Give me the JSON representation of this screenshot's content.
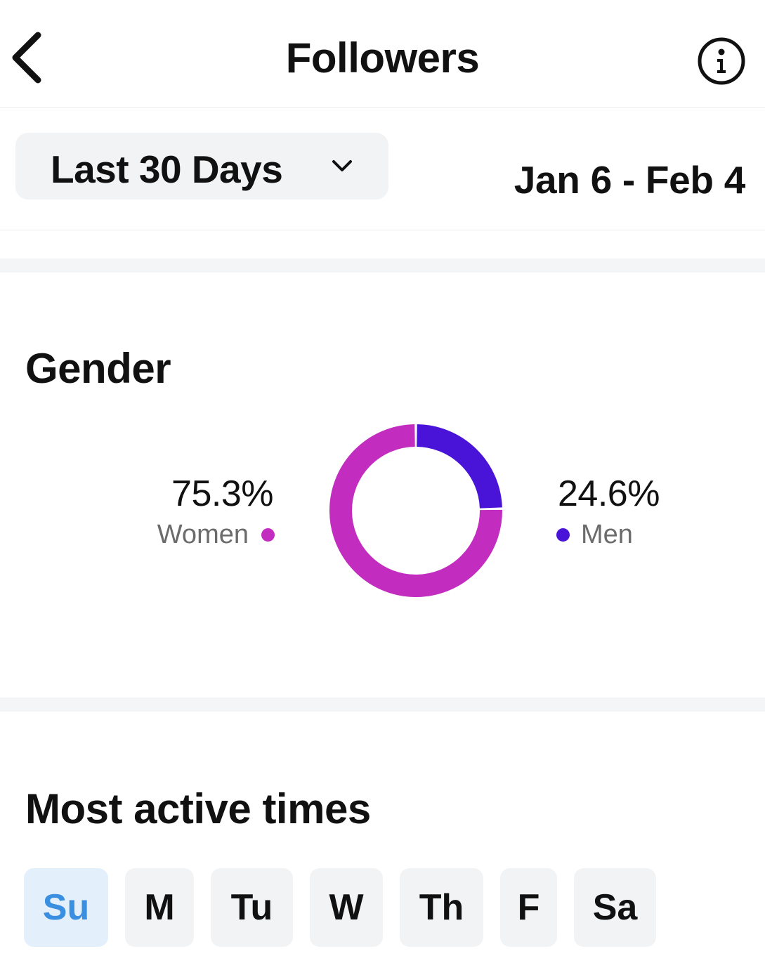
{
  "header": {
    "title": "Followers",
    "back_icon": "chevron-left-icon",
    "info_icon": "info-icon"
  },
  "filter": {
    "range_label": "Last 30 Days",
    "range_icon": "chevron-down-icon",
    "date_range": "Jan 6 - Feb 4"
  },
  "gender": {
    "title": "Gender",
    "women": {
      "value": "75.3%",
      "label": "Women",
      "color": "#c22dbf"
    },
    "men": {
      "value": "24.6%",
      "label": "Men",
      "color": "#4a14d8"
    }
  },
  "chart_data": {
    "type": "pie",
    "title": "Gender",
    "categories": [
      "Women",
      "Men"
    ],
    "values": [
      75.3,
      24.6
    ],
    "colors": [
      "#c22dbf",
      "#4a14d8"
    ],
    "donut": true
  },
  "active_times": {
    "title": "Most active times",
    "selected_day": "Su",
    "days": [
      "Su",
      "M",
      "Tu",
      "W",
      "Th",
      "F",
      "Sa"
    ]
  }
}
